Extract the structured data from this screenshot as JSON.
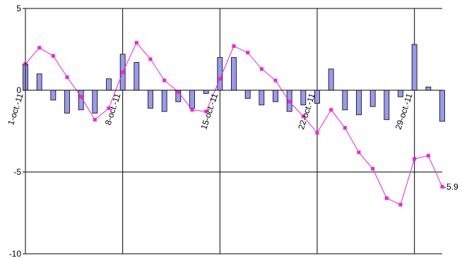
{
  "chart_data": {
    "type": "bar",
    "title": "",
    "xlabel": "",
    "ylabel": "",
    "ylim": [
      -10,
      5
    ],
    "yticks": [
      5,
      0,
      -5,
      -10
    ],
    "grid": true,
    "legend": "none",
    "x_ticks": [
      {
        "day": 1,
        "label": "1-oct.-11"
      },
      {
        "day": 8,
        "label": "8-oct.-11"
      },
      {
        "day": 15,
        "label": "15-oct.-11"
      },
      {
        "day": 22,
        "label": "22-oct.-11"
      },
      {
        "day": 29,
        "label": "29-oct.-11"
      }
    ],
    "days": [
      1,
      2,
      3,
      4,
      5,
      6,
      7,
      8,
      9,
      10,
      11,
      12,
      13,
      14,
      15,
      16,
      17,
      18,
      19,
      20,
      21,
      22,
      23,
      24,
      25,
      26,
      27,
      28,
      29,
      30,
      31
    ],
    "series": [
      {
        "kind": "bar",
        "color": "#9999ee",
        "values": [
          1.6,
          1.0,
          -0.6,
          -1.4,
          -1.2,
          -1.4,
          0.7,
          2.2,
          1.7,
          -1.1,
          -1.3,
          -0.7,
          -1.1,
          -0.2,
          2.0,
          2.0,
          -0.5,
          -0.9,
          -0.7,
          -1.3,
          -0.9,
          -0.8,
          1.3,
          -1.2,
          -1.5,
          -1.0,
          -1.8,
          -0.4,
          2.8,
          0.2,
          -1.9
        ]
      },
      {
        "kind": "line",
        "color": "#ee22dd",
        "values": [
          1.6,
          2.6,
          2.1,
          0.8,
          -0.4,
          -1.8,
          -1.1,
          1.1,
          2.9,
          1.9,
          0.6,
          -0.1,
          -1.2,
          -1.3,
          0.7,
          2.7,
          2.3,
          1.3,
          0.6,
          -0.7,
          -1.6,
          -2.6,
          -1.2,
          -2.3,
          -3.8,
          -4.8,
          -6.6,
          -7.0,
          -4.2,
          -4.0,
          -5.9
        ]
      }
    ],
    "end_label": "-5.9"
  }
}
